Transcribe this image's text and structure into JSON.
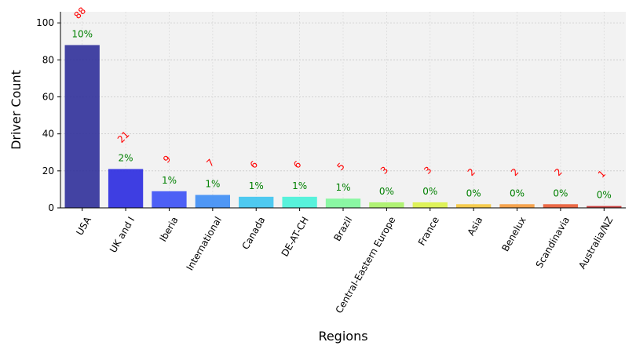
{
  "chart_data": {
    "type": "bar",
    "xlabel": "Regions",
    "ylabel": "Driver Count",
    "ylim": [
      0,
      106
    ],
    "yticks": [
      0,
      20,
      40,
      60,
      80,
      100
    ],
    "grid": true,
    "background": "#f2f2f2",
    "count_label_color": "#ff0000",
    "percent_label_color": "#008000",
    "categories": [
      "USA",
      "UK and I",
      "Iberia",
      "International",
      "Canada",
      "DE-AT-CH",
      "Brazil",
      "Central-Eastern Europe",
      "France",
      "Asia",
      "Benelux",
      "Scandinavia",
      "Australia/NZ"
    ],
    "values": [
      88,
      21,
      9,
      7,
      6,
      6,
      5,
      3,
      3,
      2,
      2,
      2,
      1
    ],
    "count_labels": [
      "88",
      "21",
      "9",
      "7",
      "6",
      "6",
      "5",
      "3",
      "3",
      "2",
      "2",
      "2",
      "1"
    ],
    "percent_labels": [
      "10%",
      "2%",
      "1%",
      "1%",
      "1%",
      "1%",
      "1%",
      "0%",
      "0%",
      "0%",
      "0%",
      "0%",
      "0%"
    ],
    "bar_colors": [
      "#30309a",
      "#2a2ae0",
      "#3b50f5",
      "#3d8df5",
      "#3cc4f0",
      "#46f2d8",
      "#7ef79a",
      "#a9f266",
      "#dcf248",
      "#f5c73b",
      "#f59a3b",
      "#ea5a33",
      "#c63030"
    ]
  }
}
